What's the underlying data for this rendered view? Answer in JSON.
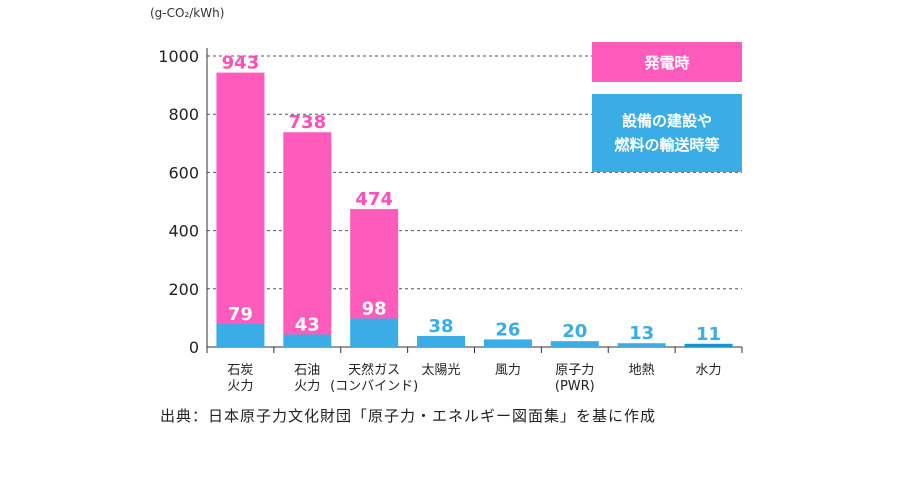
{
  "colors": {
    "operation": "#ff5bbd",
    "construction": "#3aace6",
    "operation_label": "#ff4fb8",
    "construction_label": "#3aace6",
    "hydro": "#1793d6"
  },
  "source_text": "出典：日本原子力文化財団「原子力・エネルギー図面集」を基に作成",
  "chart_data": {
    "type": "bar",
    "stacked": true,
    "title": "",
    "unit": "(g-CO₂/kWh)",
    "ylim": [
      0,
      1000
    ],
    "yticks": [
      0,
      200,
      400,
      600,
      800,
      1000
    ],
    "grid": "horizontal-dashed",
    "legend_position": "top-right",
    "categories": [
      [
        "石炭",
        "火力"
      ],
      [
        "石油",
        "火力"
      ],
      [
        "天然ガス",
        "(コンバインド)"
      ],
      [
        "太陽光"
      ],
      [
        "風力"
      ],
      [
        "原子力",
        "(PWR)"
      ],
      [
        "地熱"
      ],
      [
        "水力"
      ]
    ],
    "series": [
      {
        "name": "設備の建設や燃料の輸送時等",
        "legend_lines": [
          "設備の建設や",
          "燃料の輸送時等"
        ],
        "values": [
          79,
          43,
          98,
          38,
          26,
          20,
          13,
          11
        ]
      },
      {
        "name": "発電時",
        "legend_lines": [
          "発電時"
        ],
        "values": [
          864,
          695,
          376,
          0,
          0,
          0,
          0,
          0
        ]
      }
    ],
    "labels": {
      "bottom": [
        "79",
        "43",
        "98",
        "38",
        "26",
        "20",
        "13",
        "11"
      ],
      "top": [
        "943",
        "738",
        "474",
        "",
        "",
        "",
        "",
        ""
      ]
    }
  }
}
